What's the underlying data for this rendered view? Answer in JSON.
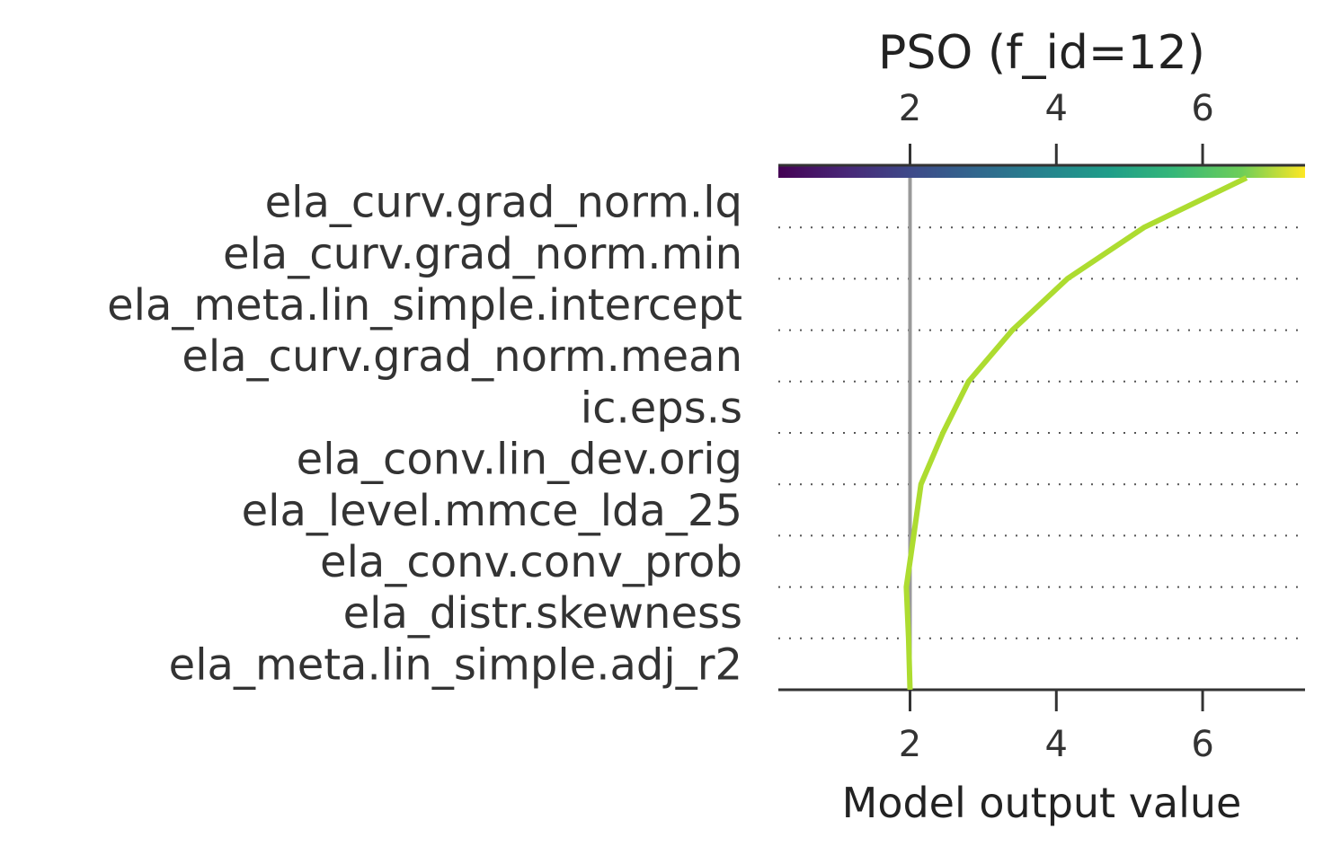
{
  "chart_data": {
    "type": "line",
    "title": "PSO (f_id=12)",
    "xlabel": "Model output value",
    "ylabel": "",
    "xlim": [
      0.2,
      7.4
    ],
    "xticks": [
      "2",
      "4",
      "6"
    ],
    "xtick_values": [
      2,
      4,
      6
    ],
    "base_value": 2.0,
    "features": [
      "ela_curv.grad_norm.lq",
      "ela_curv.grad_norm.min",
      "ela_meta.lin_simple.intercept",
      "ela_curv.grad_norm.mean",
      "ic.eps.s",
      "ela_conv.lin_dev.orig",
      "ela_level.mmce_lda_25",
      "ela_conv.conv_prob",
      "ela_distr.skewness",
      "ela_meta.lin_simple.adj_r2"
    ],
    "series": [
      {
        "values_bottom_to_top": [
          2.0,
          1.98,
          1.95,
          2.05,
          2.15,
          2.45,
          2.8,
          3.4,
          4.15,
          5.2,
          6.6
        ]
      }
    ],
    "line_color": "#addc30",
    "base_line_color": "#999999",
    "colorbar": "viridis",
    "grid": "dotted horizontal",
    "legend": "none"
  }
}
